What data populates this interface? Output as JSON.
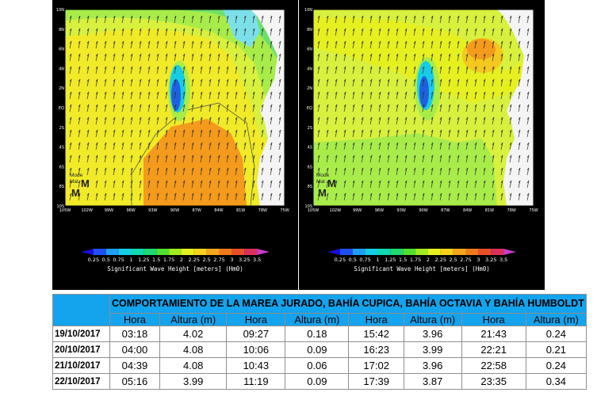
{
  "maps": {
    "lat_labels": [
      "10N",
      "8N",
      "6N",
      "4N",
      "2N",
      "EQ",
      "2S",
      "4S",
      "6S",
      "8S",
      "10S"
    ],
    "lon_labels": [
      "105W",
      "102W",
      "99W",
      "96W",
      "93W",
      "90W",
      "87W",
      "84W",
      "81W",
      "78W",
      "75W"
    ],
    "colorbar_labels": [
      "0.25",
      "0.5",
      "0.75",
      "1",
      "1.25",
      "1.5",
      "1.75",
      "2",
      "2.25",
      "2.5",
      "2.75",
      "3",
      "3.25",
      "3.5"
    ],
    "colorbar_colors": [
      "#1a0dd8",
      "#1f4ff0",
      "#1f9ff2",
      "#16cde6",
      "#10d8b0",
      "#20d870",
      "#50e030",
      "#a0ec20",
      "#e6f020",
      "#f5d21e",
      "#f5a51e",
      "#ee7a1a",
      "#e8502a",
      "#d8305a",
      "#c83cc8"
    ],
    "colorbar_title": "Significant Wave Height [meters] (Hm0)",
    "logo_text": [
      "Mode",
      "Mat"
    ],
    "colors": {
      "land": "#f4f4f4",
      "lowest_band": "#a8ec4a",
      "low_band": "#d8f03e",
      "mid_band": "#f0ea28",
      "high_band": "#f4c81e",
      "peak_band": "#f49a1c",
      "shelter_blue": "#2060e0"
    }
  },
  "table": {
    "title": "COMPORTAMIENTO DE LA MAREA JURADO, BAHÍA CUPICA, BAHÍA OCTAVIA Y BAHÍA HUMBOLDT",
    "headers": [
      "Hora",
      "Altura (m)",
      "Hora",
      "Altura (m)",
      "Hora",
      "Altura (m)",
      "Hora",
      "Altura (m)"
    ],
    "rows": [
      {
        "date": "19/10/2017",
        "values": [
          "03:18",
          "4.02",
          "09:27",
          "0.18",
          "15:42",
          "3.96",
          "21:43",
          "0.24"
        ]
      },
      {
        "date": "20/10/2017",
        "values": [
          "04:00",
          "4.08",
          "10:06",
          "0.09",
          "16:23",
          "3.99",
          "22:21",
          "0.21"
        ]
      },
      {
        "date": "21/10/2017",
        "values": [
          "04:39",
          "4.08",
          "10:43",
          "0.06",
          "17:02",
          "3.96",
          "22:58",
          "0.24"
        ]
      },
      {
        "date": "22/10/2017",
        "values": [
          "05:16",
          "3.99",
          "11:19",
          "0.09",
          "17:39",
          "3.87",
          "23:35",
          "0.34"
        ]
      }
    ]
  }
}
